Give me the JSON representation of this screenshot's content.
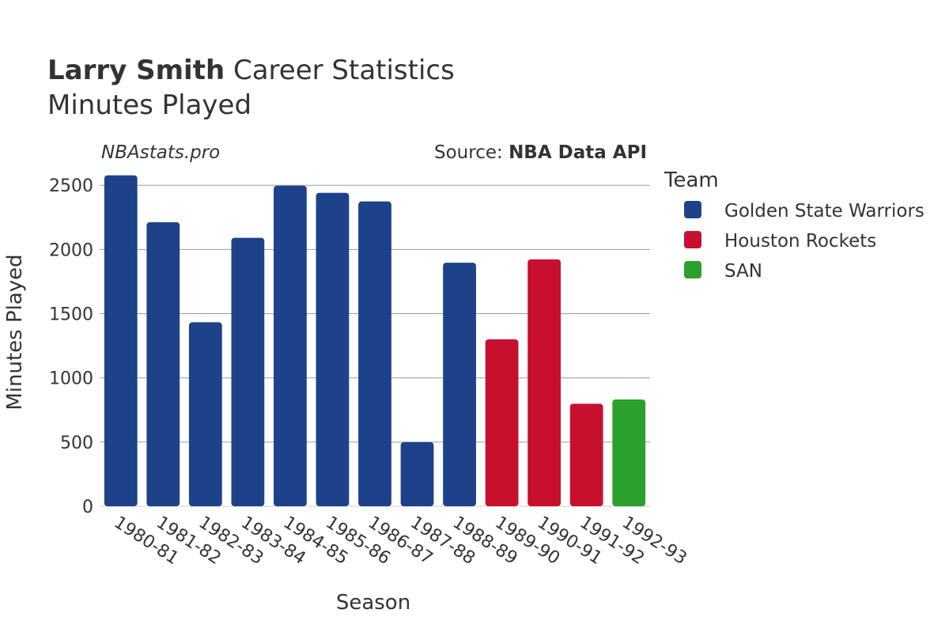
{
  "chart_data": {
    "type": "bar",
    "title_bold": "Larry Smith",
    "title_rest": " Career Statistics",
    "subtitle": "Minutes Played",
    "watermark": "NBAstats.pro",
    "source_prefix": "Source: ",
    "source_name": "NBA Data API",
    "xlabel": "Season",
    "ylabel": "Minutes Played",
    "ylim": [
      0,
      2600
    ],
    "yticks": [
      0,
      500,
      1000,
      1500,
      2000,
      2500
    ],
    "grid": true,
    "legend": {
      "title": "Team",
      "placement": "right",
      "entries": [
        {
          "name": "Golden State Warriors",
          "color": "#1d4289"
        },
        {
          "name": "Houston Rockets",
          "color": "#c8102e"
        },
        {
          "name": "SAN",
          "color": "#2ca02c"
        }
      ]
    },
    "categories": [
      "1980-81",
      "1981-82",
      "1982-83",
      "1983-84",
      "1984-85",
      "1985-86",
      "1986-87",
      "1987-88",
      "1988-89",
      "1989-90",
      "1990-91",
      "1991-92",
      "1992-93"
    ],
    "bars": [
      {
        "season": "1980-81",
        "team": "Golden State Warriors",
        "value": 2578
      },
      {
        "season": "1981-82",
        "team": "Golden State Warriors",
        "value": 2213
      },
      {
        "season": "1982-83",
        "team": "Golden State Warriors",
        "value": 1433
      },
      {
        "season": "1983-84",
        "team": "Golden State Warriors",
        "value": 2091
      },
      {
        "season": "1984-85",
        "team": "Golden State Warriors",
        "value": 2497
      },
      {
        "season": "1985-86",
        "team": "Golden State Warriors",
        "value": 2441
      },
      {
        "season": "1986-87",
        "team": "Golden State Warriors",
        "value": 2374
      },
      {
        "season": "1987-88",
        "team": "Golden State Warriors",
        "value": 499
      },
      {
        "season": "1988-89",
        "team": "Golden State Warriors",
        "value": 1897
      },
      {
        "season": "1989-90",
        "team": "Houston Rockets",
        "value": 1300
      },
      {
        "season": "1990-91",
        "team": "Houston Rockets",
        "value": 1923
      },
      {
        "season": "1991-92",
        "team": "Houston Rockets",
        "value": 799
      },
      {
        "season": "1992-93",
        "team": "SAN",
        "value": 832
      }
    ]
  }
}
